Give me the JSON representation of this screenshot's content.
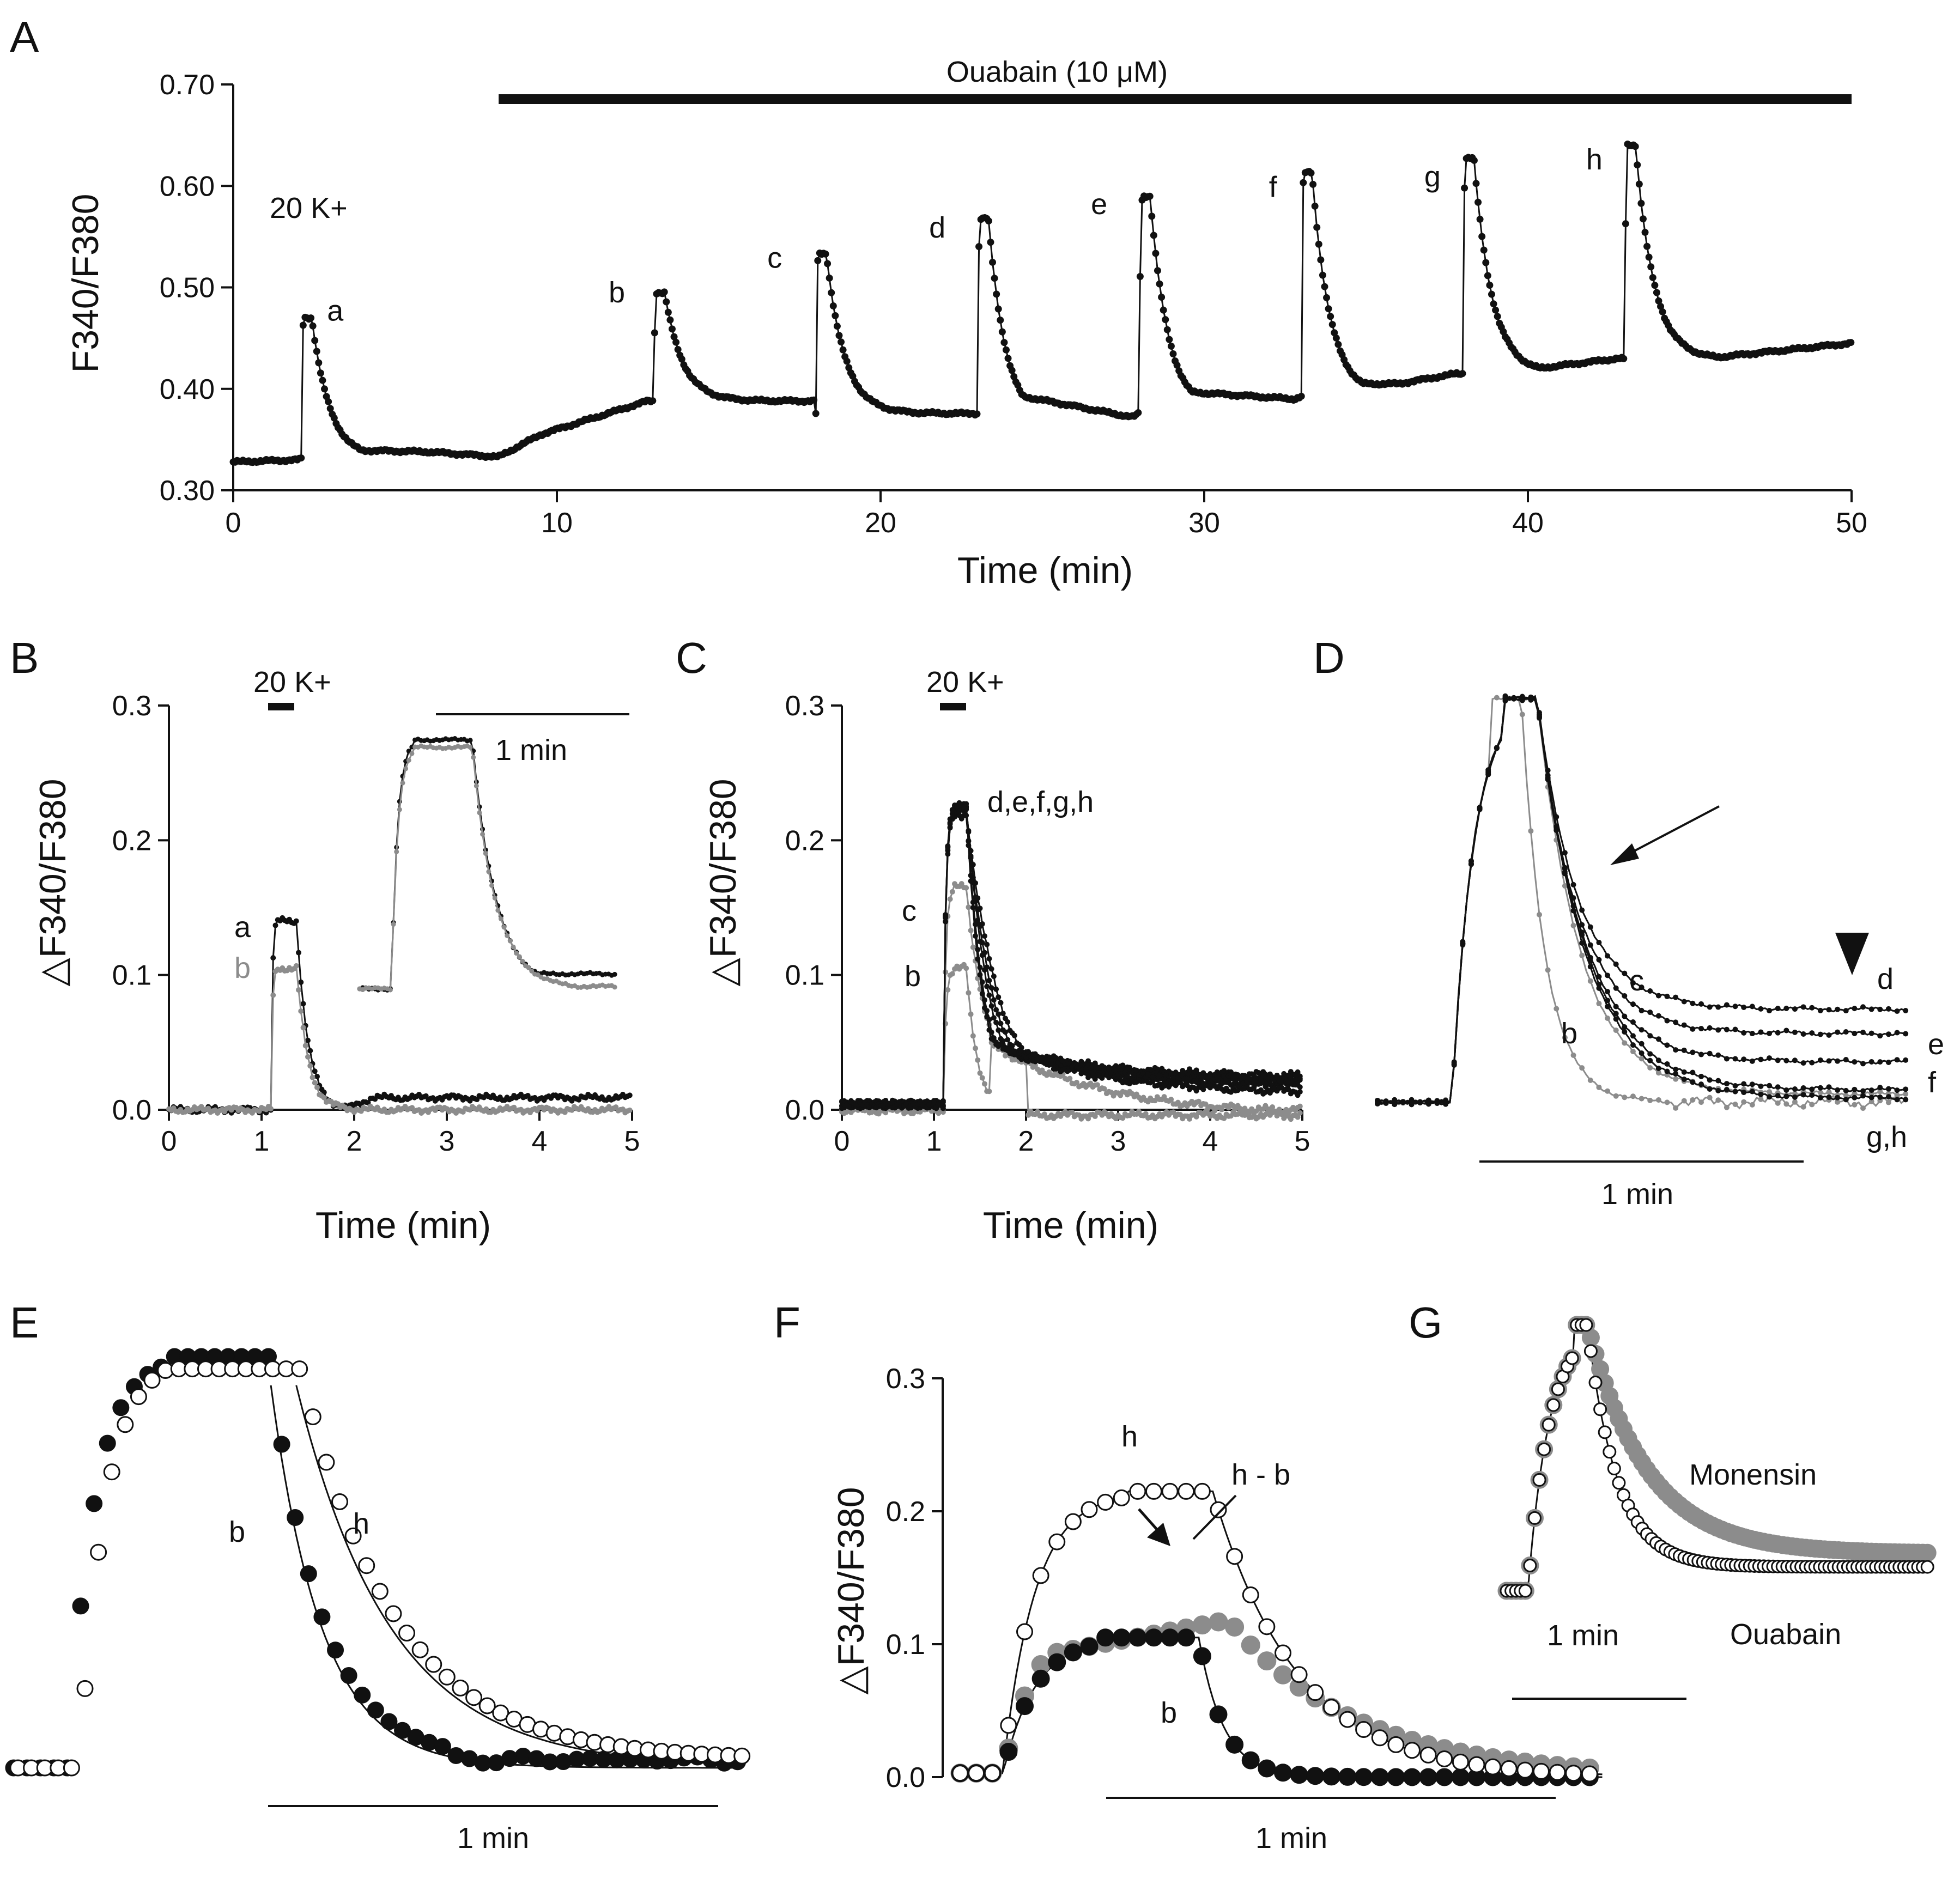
{
  "colors": {
    "dark": "#111111",
    "gray": "#8c8c8c",
    "open_fill": "#ffffff"
  },
  "panel_A": {
    "letter": "A",
    "ylabel": "F340/F380",
    "xlabel": "Time (min)",
    "yticks": [
      "0.30",
      "0.40",
      "0.50",
      "0.60",
      "0.70"
    ],
    "xticks": [
      "0",
      "10",
      "20",
      "30",
      "40",
      "50"
    ],
    "drug_label": "Ouabain (10 μM)",
    "stim_label": "20 K+",
    "peak_labels": [
      "a",
      "b",
      "c",
      "d",
      "e",
      "f",
      "g",
      "h"
    ]
  },
  "panel_B": {
    "letter": "B",
    "ylabel": "△F340/F380",
    "xlabel": "Time (min)",
    "yticks": [
      "0.0",
      "0.1",
      "0.2",
      "0.3"
    ],
    "xticks": [
      "0",
      "1",
      "2",
      "3",
      "4",
      "5"
    ],
    "stim_label": "20 K+",
    "scale_label": "1 min",
    "trace_labels": [
      "a",
      "b"
    ]
  },
  "panel_C": {
    "letter": "C",
    "ylabel": "△F340/F380",
    "xlabel": "Time (min)",
    "yticks": [
      "0.0",
      "0.1",
      "0.2",
      "0.3"
    ],
    "xticks": [
      "0",
      "1",
      "2",
      "3",
      "4",
      "5"
    ],
    "stim_label": "20 K+",
    "trace_labels": [
      "d,e,f,g,h",
      "c",
      "b"
    ]
  },
  "panel_D": {
    "letter": "D",
    "scale_label": "1 min",
    "trace_labels": [
      "d",
      "e",
      "f",
      "g,h",
      "c",
      "b"
    ]
  },
  "panel_E": {
    "letter": "E",
    "scale_label": "1 min",
    "trace_labels": [
      "b",
      "h"
    ]
  },
  "panel_F": {
    "letter": "F",
    "ylabel": "△F340/F380",
    "yticks": [
      "0.0",
      "0.1",
      "0.2",
      "0.3"
    ],
    "scale_label": "1 min",
    "trace_labels": [
      "h",
      "h - b",
      "b"
    ]
  },
  "panel_G": {
    "letter": "G",
    "scale_label": "1 min",
    "trace_labels": [
      "Monensin",
      "Ouabain"
    ]
  },
  "chart_data": [
    {
      "panel": "A",
      "type": "line",
      "xlabel": "Time (min)",
      "ylabel": "F340/F380",
      "xlim": [
        0,
        50
      ],
      "ylim": [
        0.3,
        0.7
      ],
      "drug_bar": {
        "label": "Ouabain (10 μM)",
        "start": 8.2,
        "end": 50
      },
      "baseline": [
        [
          0,
          0.328
        ],
        [
          2,
          0.33
        ],
        [
          3,
          0.34
        ],
        [
          6,
          0.338
        ],
        [
          8.2,
          0.333
        ],
        [
          9.5,
          0.355
        ],
        [
          12.8,
          0.388
        ],
        [
          14,
          0.388
        ],
        [
          17.8,
          0.375
        ],
        [
          19.2,
          0.38
        ],
        [
          22.8,
          0.357
        ],
        [
          24,
          0.395
        ],
        [
          27.8,
          0.372
        ],
        [
          29,
          0.398
        ],
        [
          32.8,
          0.39
        ],
        [
          34,
          0.405
        ],
        [
          36,
          0.405
        ],
        [
          37.8,
          0.415
        ],
        [
          39,
          0.415
        ],
        [
          42.8,
          0.43
        ],
        [
          44,
          0.425
        ],
        [
          50,
          0.445
        ]
      ],
      "responses": [
        {
          "label": "a",
          "onset": 2.1,
          "peak": 0.47
        },
        {
          "label": "b",
          "onset": 13.0,
          "peak": 0.495
        },
        {
          "label": "c",
          "onset": 18.0,
          "peak": 0.533
        },
        {
          "label": "d",
          "onset": 23.0,
          "peak": 0.568
        },
        {
          "label": "e",
          "onset": 28.0,
          "peak": 0.59
        },
        {
          "label": "f",
          "onset": 33.0,
          "peak": 0.613
        },
        {
          "label": "g",
          "onset": 38.0,
          "peak": 0.628
        },
        {
          "label": "h",
          "onset": 43.0,
          "peak": 0.64
        }
      ]
    },
    {
      "panel": "B",
      "type": "line",
      "xlabel": "Time (min)",
      "ylabel": "△F340/F380",
      "xlim": [
        0,
        5
      ],
      "ylim": [
        0,
        0.3
      ],
      "stim": {
        "label": "20 K+",
        "start": 1.1,
        "end": 1.35
      },
      "series": [
        {
          "name": "a",
          "color": "dark",
          "peak": 0.14,
          "end": 0.009
        },
        {
          "name": "b",
          "color": "gray",
          "peak": 0.105,
          "end": -0.008
        }
      ],
      "inset_scale": "1 min"
    },
    {
      "panel": "C",
      "type": "line",
      "xlabel": "Time (min)",
      "ylabel": "△F340/F380",
      "xlim": [
        0,
        5
      ],
      "ylim": [
        0,
        0.3
      ],
      "stim": {
        "label": "20 K+",
        "start": 1.1,
        "end": 1.35
      },
      "series": [
        {
          "name": "b",
          "color": "gray",
          "peak": 0.105
        },
        {
          "name": "c",
          "color": "gray",
          "peak": 0.165
        },
        {
          "name": "d,e,f,g,h",
          "color": "dark",
          "peak": 0.222
        }
      ]
    },
    {
      "panel": "D",
      "type": "line",
      "normalized": true,
      "scale_label": "1 min",
      "series": [
        {
          "name": "b",
          "color": "gray",
          "end": 0.0
        },
        {
          "name": "c",
          "color": "gray",
          "end": 0.02
        },
        {
          "name": "d",
          "color": "dark",
          "end": 0.23
        },
        {
          "name": "e",
          "color": "dark",
          "end": 0.17
        },
        {
          "name": "f",
          "color": "dark",
          "end": 0.1
        },
        {
          "name": "g,h",
          "color": "dark",
          "end": 0.03
        }
      ]
    },
    {
      "panel": "E",
      "type": "scatter",
      "normalized": true,
      "scale_label": "1 min",
      "series": [
        {
          "name": "b",
          "marker": "filled",
          "fit": "exponential"
        },
        {
          "name": "h",
          "marker": "open",
          "fit": "exponential"
        }
      ]
    },
    {
      "panel": "F",
      "type": "scatter",
      "ylabel": "△F340/F380",
      "ylim": [
        0,
        0.3
      ],
      "scale_label": "1 min",
      "series": [
        {
          "name": "h",
          "marker": "open",
          "peak": 0.215
        },
        {
          "name": "b",
          "marker": "filled",
          "peak": 0.105
        },
        {
          "name": "h - b",
          "marker": "gray",
          "peak": 0.12
        }
      ]
    },
    {
      "panel": "G",
      "type": "scatter",
      "normalized": true,
      "scale_label": "1 min",
      "series": [
        {
          "name": "Monensin",
          "marker": "gray",
          "end": 0.14
        },
        {
          "name": "Ouabain",
          "marker": "open",
          "end": 0.1
        }
      ]
    }
  ]
}
